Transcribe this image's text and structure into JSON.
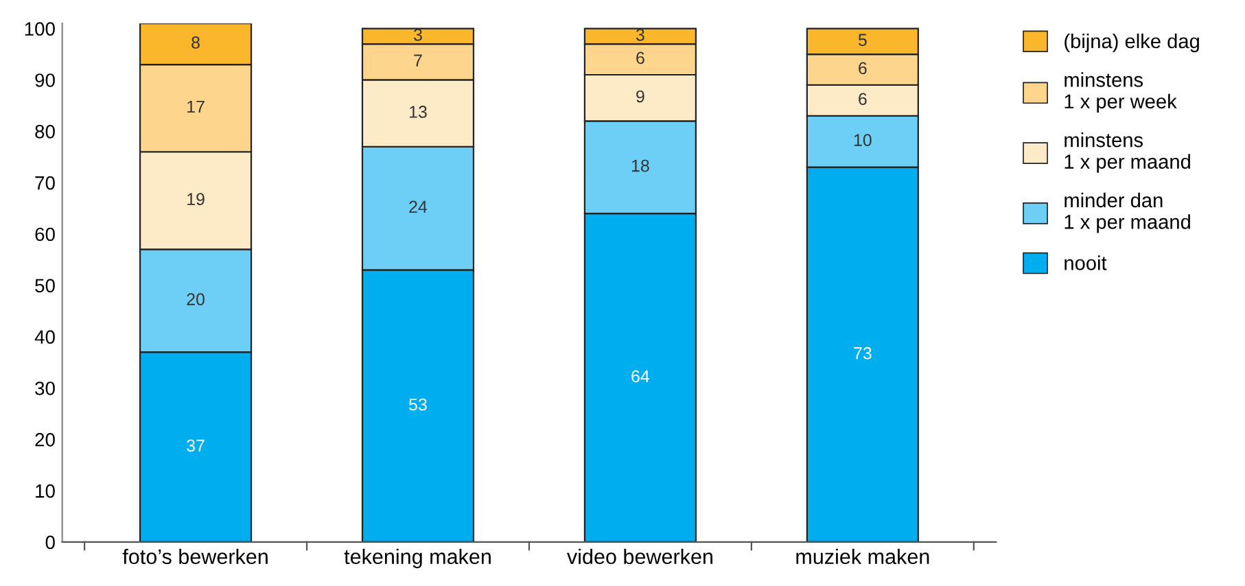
{
  "chart_data": {
    "type": "bar",
    "stacked": true,
    "categories": [
      "foto’s bewerken",
      "tekening maken",
      "video bewerken",
      "muziek maken"
    ],
    "series": [
      {
        "name": "nooit",
        "color": "#00aeef",
        "values": [
          37,
          53,
          64,
          73
        ]
      },
      {
        "name": "minder dan\n1 x per maand",
        "color": "#6dcff6",
        "values": [
          20,
          24,
          18,
          10
        ]
      },
      {
        "name": "minstens\n1 x per maand",
        "color": "#fdebc8",
        "values": [
          19,
          13,
          9,
          6
        ]
      },
      {
        "name": "minstens\n1 x per week",
        "color": "#fdd58d",
        "values": [
          17,
          7,
          6,
          6
        ]
      },
      {
        "name": "(bijna) elke dag",
        "color": "#fbb72b",
        "values": [
          8,
          3,
          3,
          5
        ]
      }
    ],
    "ylim": [
      0,
      101
    ],
    "yticks": [
      0,
      10,
      20,
      30,
      40,
      50,
      60,
      70,
      80,
      90,
      100
    ],
    "grid": false,
    "legend": "right",
    "data_labels": true
  }
}
